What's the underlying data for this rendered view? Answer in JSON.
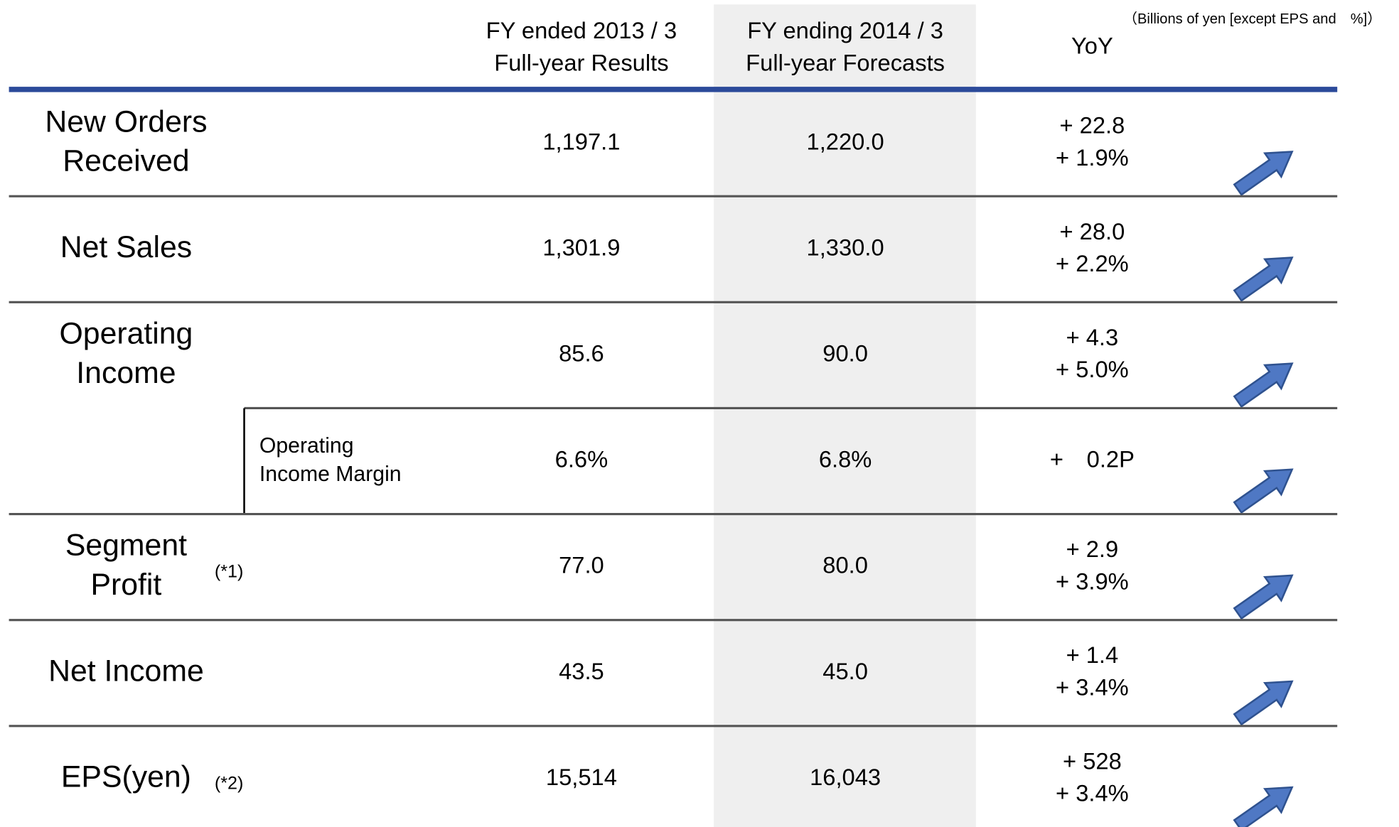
{
  "note": "（Billions of yen [except EPS and　%]）",
  "header": {
    "results": [
      "FY ended 2013 / 3",
      "Full-year Results"
    ],
    "forecasts": [
      "FY ending 2014 / 3",
      "Full-year Forecasts"
    ],
    "yoy": "YoY"
  },
  "rows": [
    {
      "label": [
        "New Orders",
        "Received"
      ],
      "results": "1,197.1",
      "forecasts": "1,220.0",
      "yoy": [
        "+ 22.8",
        "+ 1.9%"
      ]
    },
    {
      "label": [
        "Net Sales"
      ],
      "results": "1,301.9",
      "forecasts": "1,330.0",
      "yoy": [
        "+ 28.0",
        "+ 2.2%"
      ]
    },
    {
      "label": [
        "Operating",
        "Income"
      ],
      "results": "85.6",
      "forecasts": "90.0",
      "yoy": [
        "+ 4.3",
        "+ 5.0%"
      ]
    },
    {
      "sublabel": [
        "Operating",
        "Income Margin"
      ],
      "results": "6.6%",
      "forecasts": "6.8%",
      "yoy": [
        "+　0.2P"
      ]
    },
    {
      "label": [
        "Segment",
        "Profit"
      ],
      "note": "(*1)",
      "results": "77.0",
      "forecasts": "80.0",
      "yoy": [
        "+ 2.9",
        "+ 3.9%"
      ]
    },
    {
      "label": [
        "Net Income"
      ],
      "results": "43.5",
      "forecasts": "45.0",
      "yoy": [
        "+ 1.4",
        "+ 3.4%"
      ]
    },
    {
      "label": [
        "EPS(yen)"
      ],
      "note": "(*2)",
      "results": "15,514",
      "forecasts": "16,043",
      "yoy": [
        "+ 528",
        "+ 3.4%"
      ]
    }
  ]
}
